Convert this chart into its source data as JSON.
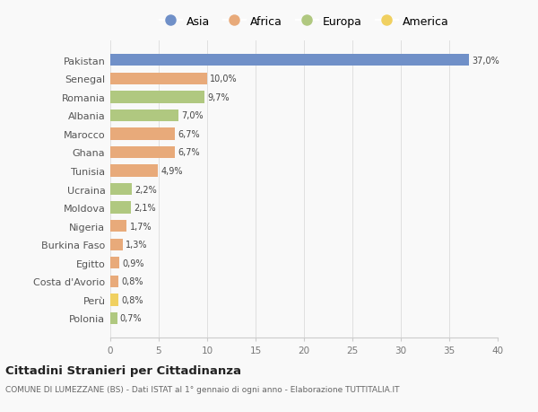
{
  "countries": [
    "Pakistan",
    "Senegal",
    "Romania",
    "Albania",
    "Marocco",
    "Ghana",
    "Tunisia",
    "Ucraina",
    "Moldova",
    "Nigeria",
    "Burkina Faso",
    "Egitto",
    "Costa d'Avorio",
    "Perù",
    "Polonia"
  ],
  "values": [
    37.0,
    10.0,
    9.7,
    7.0,
    6.7,
    6.7,
    4.9,
    2.2,
    2.1,
    1.7,
    1.3,
    0.9,
    0.8,
    0.8,
    0.7
  ],
  "labels": [
    "37,0%",
    "10,0%",
    "9,7%",
    "7,0%",
    "6,7%",
    "6,7%",
    "4,9%",
    "2,2%",
    "2,1%",
    "1,7%",
    "1,3%",
    "0,9%",
    "0,8%",
    "0,8%",
    "0,7%"
  ],
  "continents": [
    "Asia",
    "Africa",
    "Europa",
    "Europa",
    "Africa",
    "Africa",
    "Africa",
    "Europa",
    "Europa",
    "Africa",
    "Africa",
    "Africa",
    "Africa",
    "America",
    "Europa"
  ],
  "continent_colors": {
    "Asia": "#7090c8",
    "Africa": "#e8aa7a",
    "Europa": "#b0c880",
    "America": "#f0d060"
  },
  "legend_order": [
    "Asia",
    "Africa",
    "Europa",
    "America"
  ],
  "title": "Cittadini Stranieri per Cittadinanza",
  "subtitle": "COMUNE DI LUMEZZANE (BS) - Dati ISTAT al 1° gennaio di ogni anno - Elaborazione TUTTITALIA.IT",
  "xlim": [
    0,
    40
  ],
  "xticks": [
    0,
    5,
    10,
    15,
    20,
    25,
    30,
    35,
    40
  ],
  "bg_color": "#f9f9f9",
  "grid_color": "#e0e0e0"
}
